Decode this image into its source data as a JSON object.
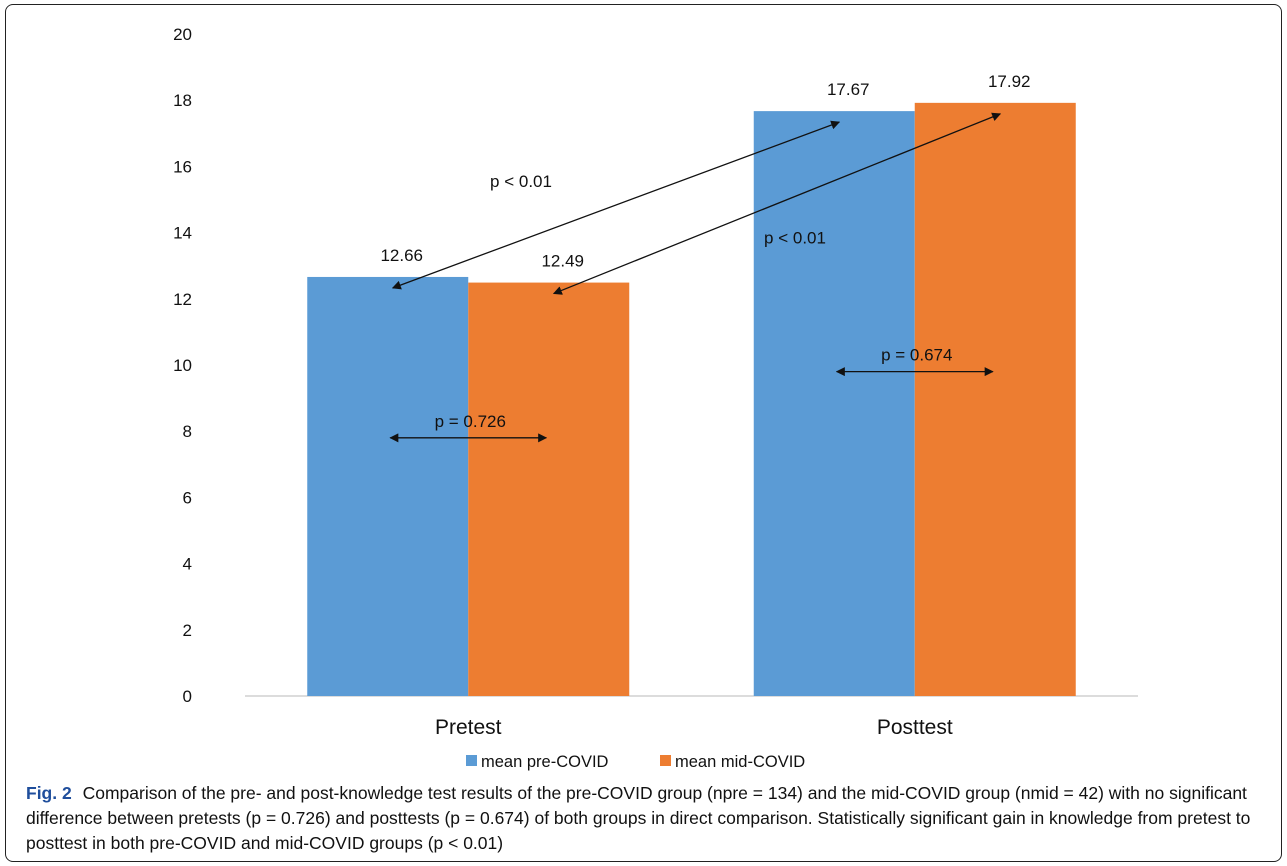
{
  "chart_data": {
    "type": "bar",
    "categories": [
      "Pretest",
      "Posttest"
    ],
    "series": [
      {
        "name": "mean pre-COVID",
        "color": "#5B9BD5",
        "values": [
          12.66,
          17.67
        ],
        "labels": [
          "12.66",
          "17.67"
        ]
      },
      {
        "name": "mean mid-COVID",
        "color": "#ED7D31",
        "values": [
          12.49,
          17.92
        ],
        "labels": [
          "12.49",
          "17.92"
        ]
      }
    ],
    "ylim": [
      0,
      20
    ],
    "yticks": [
      "0",
      "2",
      "4",
      "6",
      "8",
      "10",
      "12",
      "14",
      "16",
      "18",
      "20"
    ],
    "xlabel": "",
    "ylabel": "",
    "legend": "bottom",
    "grid": false,
    "annotations": [
      {
        "text": "p < 0.01",
        "from": [
          "Pretest",
          "mean pre-COVID"
        ],
        "to": [
          "Posttest",
          "mean pre-COVID"
        ]
      },
      {
        "text": "p < 0.01",
        "from": [
          "Pretest",
          "mean mid-COVID"
        ],
        "to": [
          "Posttest",
          "mean mid-COVID"
        ]
      },
      {
        "text": "p = 0.726",
        "category": "Pretest",
        "y": 7.8
      },
      {
        "text": "p = 0.674",
        "category": "Posttest",
        "y": 9.8
      }
    ]
  },
  "caption": {
    "label": "Fig. 2",
    "text": "Comparison of the pre- and post-knowledge test results of the pre-COVID group (npre = 134) and the mid-COVID group (nmid = 42) with no significant difference between pretests (p = 0.726) and posttests (p = 0.674) of both groups in direct comparison. Statistically significant gain in knowledge from pretest to posttest in both pre-COVID and mid-COVID groups (p < 0.01)"
  }
}
